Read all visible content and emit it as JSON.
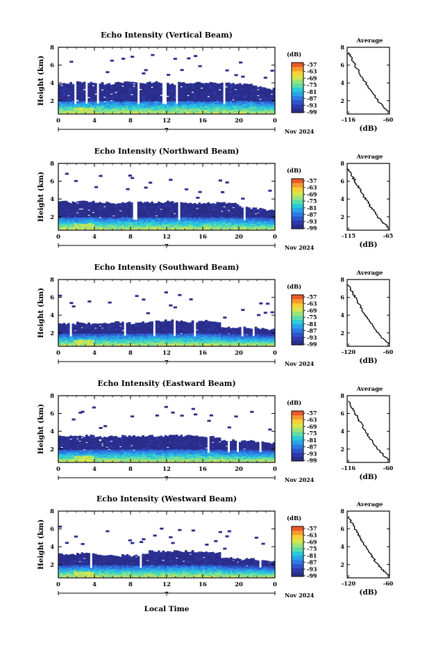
{
  "figure": {
    "x_axis_label": "Local Time",
    "date_label": "Nov 2024",
    "day_label": "7",
    "colorbar_unit": "(dB)"
  },
  "colormap": [
    "#2b2d8a",
    "#2e3aa8",
    "#2f55c8",
    "#2f7ae0",
    "#2aa3e8",
    "#2cc9d8",
    "#5fdca8",
    "#9ce37a",
    "#d6e64c",
    "#f7cf3a",
    "#f59a2e",
    "#ea5a2a"
  ],
  "chart_data": [
    {
      "type": "heatmap",
      "title": "Echo Intensity (Vertical Beam)",
      "xlabel": "",
      "ylabel": "Height (km)",
      "xlim": [
        0,
        24
      ],
      "ylim": [
        0.5,
        8
      ],
      "x_ticks": [
        "0",
        "4",
        "8",
        "12",
        "16",
        "20",
        "0"
      ],
      "y_ticks": [
        "2",
        "4",
        "6",
        "8"
      ],
      "colorbar": {
        "unit": "(dB)",
        "ticks": [
          "-57",
          "-63",
          "-69",
          "-75",
          "-81",
          "-87",
          "-93",
          "-99"
        ]
      },
      "echo_tops_km": [
        4.0,
        4.0,
        4.1,
        4.0,
        4.0,
        3.9,
        4.0,
        4.1,
        4.0,
        4.0,
        4.1,
        4.0,
        3.9,
        4.0,
        4.0,
        4.1,
        4.0,
        4.0,
        4.0,
        3.9,
        3.9,
        3.8,
        3.5,
        3.4
      ],
      "average_profile": {
        "title": "Average",
        "xlabel": "(dB)",
        "x_ticks": [
          "-116",
          "-60"
        ],
        "xlim": [
          -116,
          -60
        ],
        "y_ticks": [
          "2",
          "4",
          "6",
          "8"
        ],
        "ylim": [
          0.5,
          8
        ]
      }
    },
    {
      "type": "heatmap",
      "title": "Echo Intensity (Northward Beam)",
      "xlabel": "",
      "ylabel": "Height (km)",
      "xlim": [
        0,
        24
      ],
      "ylim": [
        0.5,
        8
      ],
      "x_ticks": [
        "0",
        "4",
        "8",
        "12",
        "16",
        "20",
        "0"
      ],
      "y_ticks": [
        "2",
        "4",
        "6",
        "8"
      ],
      "colorbar": {
        "unit": "(dB)",
        "ticks": [
          "-57",
          "-63",
          "-69",
          "-75",
          "-81",
          "-87",
          "-93",
          "-99"
        ]
      },
      "echo_tops_km": [
        3.7,
        3.6,
        3.7,
        3.7,
        3.6,
        3.6,
        3.5,
        3.6,
        3.6,
        3.7,
        3.6,
        3.6,
        3.7,
        3.6,
        3.6,
        3.5,
        3.6,
        3.6,
        3.6,
        3.5,
        3.2,
        3.0,
        2.9,
        2.7
      ],
      "average_profile": {
        "title": "Average",
        "xlabel": "(dB)",
        "x_ticks": [
          "-115",
          "-65"
        ],
        "xlim": [
          -115,
          -65
        ],
        "y_ticks": [
          "2",
          "4",
          "6",
          "8"
        ],
        "ylim": [
          0.5,
          8
        ]
      }
    },
    {
      "type": "heatmap",
      "title": "Echo Intensity (Southward Beam)",
      "xlabel": "",
      "ylabel": "Height (km)",
      "xlim": [
        0,
        24
      ],
      "ylim": [
        0.5,
        8
      ],
      "x_ticks": [
        "0",
        "4",
        "8",
        "12",
        "16",
        "20",
        "0"
      ],
      "y_ticks": [
        "2",
        "4",
        "6",
        "8"
      ],
      "colorbar": {
        "unit": "(dB)",
        "ticks": [
          "-57",
          "-63",
          "-69",
          "-75",
          "-81",
          "-87",
          "-93",
          "-99"
        ]
      },
      "echo_tops_km": [
        3.0,
        3.0,
        3.2,
        3.1,
        3.0,
        3.1,
        3.2,
        3.2,
        3.1,
        3.2,
        3.3,
        3.4,
        3.4,
        3.4,
        3.3,
        3.3,
        3.4,
        3.3,
        2.6,
        2.5,
        2.6,
        2.6,
        2.5,
        2.4
      ],
      "average_profile": {
        "title": "Average",
        "xlabel": "(dB)",
        "x_ticks": [
          "-120",
          "-60"
        ],
        "xlim": [
          -120,
          -60
        ],
        "y_ticks": [
          "2",
          "4",
          "6",
          "8"
        ],
        "ylim": [
          0.5,
          8
        ]
      }
    },
    {
      "type": "heatmap",
      "title": "Echo Intensity (Eastward Beam)",
      "xlabel": "",
      "ylabel": "Height (km)",
      "xlim": [
        0,
        24
      ],
      "ylim": [
        0.5,
        8
      ],
      "x_ticks": [
        "0",
        "4",
        "8",
        "12",
        "16",
        "20",
        "0"
      ],
      "y_ticks": [
        "2",
        "4",
        "6",
        "8"
      ],
      "colorbar": {
        "unit": "(dB)",
        "ticks": [
          "-57",
          "-63",
          "-69",
          "-75",
          "-81",
          "-87",
          "-93",
          "-99"
        ]
      },
      "echo_tops_km": [
        3.4,
        3.4,
        3.5,
        3.5,
        3.4,
        3.4,
        3.4,
        3.5,
        3.5,
        3.5,
        3.5,
        3.5,
        3.5,
        3.5,
        3.5,
        3.5,
        3.4,
        3.4,
        3.0,
        3.0,
        2.9,
        2.9,
        2.8,
        2.7
      ],
      "average_profile": {
        "title": "Average",
        "xlabel": "(dB)",
        "x_ticks": [
          "-116",
          "-60"
        ],
        "xlim": [
          -116,
          -60
        ],
        "y_ticks": [
          "2",
          "4",
          "6",
          "8"
        ],
        "ylim": [
          0.5,
          8
        ]
      }
    },
    {
      "type": "heatmap",
      "title": "Echo Intensity (Westward Beam)",
      "xlabel": "Local Time",
      "ylabel": "Height (km)",
      "xlim": [
        0,
        24
      ],
      "ylim": [
        0.5,
        8
      ],
      "x_ticks": [
        "0",
        "4",
        "8",
        "12",
        "16",
        "20",
        "0"
      ],
      "y_ticks": [
        "2",
        "4",
        "6",
        "8"
      ],
      "colorbar": {
        "unit": "(dB)",
        "ticks": [
          "-57",
          "-63",
          "-69",
          "-75",
          "-81",
          "-87",
          "-93",
          "-99"
        ]
      },
      "echo_tops_km": [
        3.2,
        3.2,
        3.3,
        3.3,
        3.1,
        3.1,
        3.0,
        3.1,
        3.0,
        3.1,
        3.5,
        3.5,
        3.5,
        3.5,
        3.5,
        3.4,
        3.5,
        3.3,
        2.7,
        2.7,
        2.6,
        2.6,
        2.5,
        2.4
      ],
      "average_profile": {
        "title": "Average",
        "xlabel": "(dB)",
        "x_ticks": [
          "-120",
          "-60"
        ],
        "xlim": [
          -120,
          -60
        ],
        "y_ticks": [
          "2",
          "4",
          "6",
          "8"
        ],
        "ylim": [
          0.5,
          8
        ]
      }
    }
  ]
}
